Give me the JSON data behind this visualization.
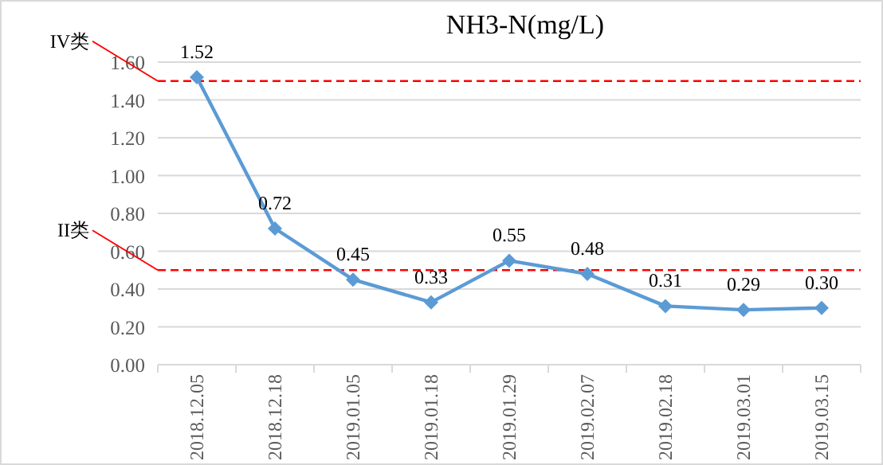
{
  "chart_data": {
    "type": "line",
    "title": "NH3-N(mg/L)",
    "categories": [
      "2018.12.05",
      "2018.12.18",
      "2019.01.05",
      "2019.01.18",
      "2019.01.29",
      "2019.02.07",
      "2019.02.18",
      "2019.03.01",
      "2019.03.15"
    ],
    "series": [
      {
        "color": "#5b9bd5",
        "values": [
          1.52,
          0.72,
          0.45,
          0.33,
          0.55,
          0.48,
          0.31,
          0.29,
          0.3
        ],
        "value_labels": [
          "1.52",
          "0.72",
          "0.45",
          "0.33",
          "0.55",
          "0.48",
          "0.31",
          "0.29",
          "0.30"
        ]
      }
    ],
    "ylim": [
      0,
      1.6
    ],
    "yticks": [
      {
        "value": 0,
        "label": "0.00"
      },
      {
        "value": 0.2,
        "label": "0.20"
      },
      {
        "value": 0.4,
        "label": "0.40"
      },
      {
        "value": 0.6,
        "label": "0.60"
      },
      {
        "value": 0.8,
        "label": "0.80"
      },
      {
        "value": 1.0,
        "label": "1.00"
      },
      {
        "value": 1.2,
        "label": "1.20"
      },
      {
        "value": 1.4,
        "label": "1.40"
      },
      {
        "value": 1.6,
        "label": "1.60"
      }
    ],
    "ref_lines": [
      {
        "axis": "y",
        "value": 1.5,
        "label": "IV类",
        "color": "#ff0000",
        "line_style": "dashed"
      },
      {
        "axis": "y",
        "value": 0.5,
        "label": "II类",
        "color": "#ff0000",
        "line_style": "dashed"
      }
    ],
    "grid": "y",
    "marker": "diamond",
    "line_style": "solid"
  }
}
